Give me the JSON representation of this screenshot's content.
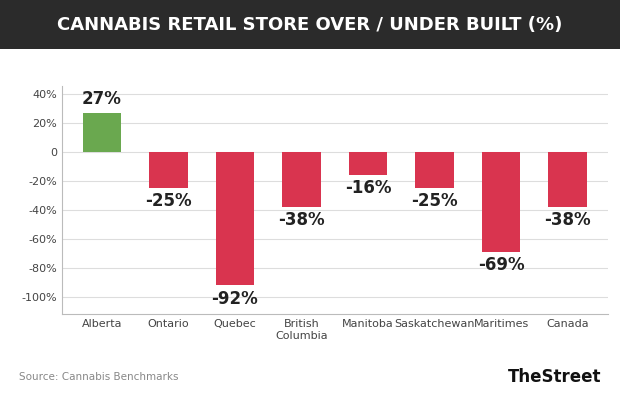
{
  "chart_data": {
    "type": "bar",
    "title": "CANNABIS RETAIL STORE OVER / UNDER BUILT (%)",
    "categories": [
      "Alberta",
      "Ontario",
      "Quebec",
      "British Columbia",
      "Manitoba",
      "Saskatchewan",
      "Maritimes",
      "Canada"
    ],
    "values": [
      27,
      -25,
      -92,
      -38,
      -16,
      -25,
      -69,
      -38
    ],
    "value_labels": [
      "27%",
      "-25%",
      "-92%",
      "-38%",
      "-16%",
      "-25%",
      "-69%",
      "-38%"
    ],
    "data_labels": true,
    "colors": [
      "#6aa84f",
      "#d9344f",
      "#d9344f",
      "#d9344f",
      "#d9344f",
      "#d9344f",
      "#d9344f",
      "#d9344f"
    ],
    "ylim": [
      -112,
      45
    ],
    "yticks": [
      {
        "value": -100,
        "label": "-100%"
      },
      {
        "value": -80,
        "label": "-80%"
      },
      {
        "value": -60,
        "label": "-60%"
      },
      {
        "value": -40,
        "label": "-40%"
      },
      {
        "value": -20,
        "label": "-20%"
      },
      0,
      {
        "value": 20,
        "label": "20%"
      },
      {
        "value": 40,
        "label": "40%"
      }
    ],
    "grid": true,
    "source": "Source: Cannabis Benchmarks",
    "credit": "TheStreet"
  }
}
